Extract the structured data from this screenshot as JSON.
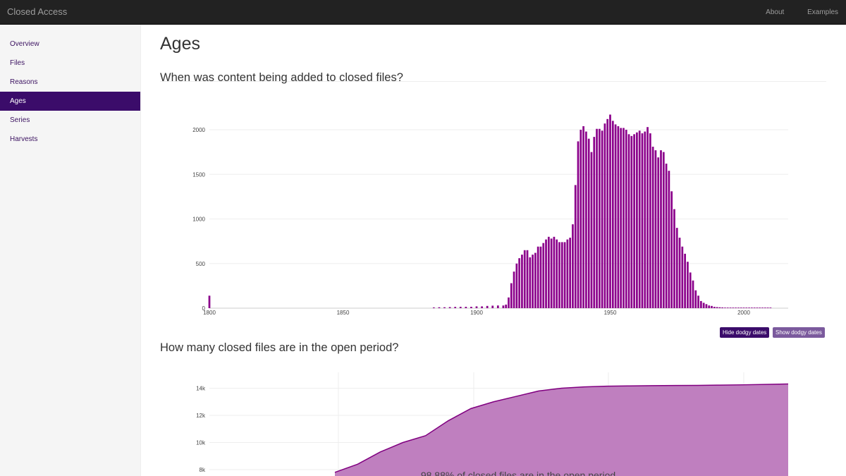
{
  "app": {
    "brand": "Closed Access",
    "nav": [
      "About",
      "Examples"
    ]
  },
  "sidebar": {
    "items": [
      {
        "label": "Overview",
        "active": false
      },
      {
        "label": "Files",
        "active": false
      },
      {
        "label": "Reasons",
        "active": false
      },
      {
        "label": "Ages",
        "active": true
      },
      {
        "label": "Series",
        "active": false
      },
      {
        "label": "Harvests",
        "active": false
      }
    ]
  },
  "page": {
    "title": "Ages",
    "section1_heading": "When was content being added to closed files?",
    "section2_heading": "How many closed files are in the open period?",
    "buttons": {
      "hide": "Hide dodgy dates",
      "show": "Show dodgy dates"
    }
  },
  "colors": {
    "bar": "#8b008b",
    "area_fill": "#bf7fbf",
    "area_line": "#800080",
    "active_nav": "#3b0c6a"
  },
  "chart_data": [
    {
      "type": "bar",
      "title": "",
      "xlabel": "",
      "ylabel": "",
      "x_ticks": [
        1800,
        1850,
        1900,
        1950,
        2000
      ],
      "y_ticks": [
        0,
        500,
        1000,
        1500,
        2000
      ],
      "xlim": [
        1799,
        2016
      ],
      "ylim": [
        0,
        2200
      ],
      "grid": true,
      "x": [
        1800,
        1884,
        1886,
        1888,
        1890,
        1892,
        1894,
        1896,
        1898,
        1900,
        1902,
        1904,
        1906,
        1908,
        1910,
        1911,
        1912,
        1913,
        1914,
        1915,
        1916,
        1917,
        1918,
        1919,
        1920,
        1921,
        1922,
        1923,
        1924,
        1925,
        1926,
        1927,
        1928,
        1929,
        1930,
        1931,
        1932,
        1933,
        1934,
        1935,
        1936,
        1937,
        1938,
        1939,
        1940,
        1941,
        1942,
        1943,
        1944,
        1945,
        1946,
        1947,
        1948,
        1949,
        1950,
        1951,
        1952,
        1953,
        1954,
        1955,
        1956,
        1957,
        1958,
        1959,
        1960,
        1961,
        1962,
        1963,
        1964,
        1965,
        1966,
        1967,
        1968,
        1969,
        1970,
        1971,
        1972,
        1973,
        1974,
        1975,
        1976,
        1977,
        1978,
        1979,
        1980,
        1981,
        1982,
        1983,
        1984,
        1985,
        1986,
        1987,
        1988,
        1989,
        1990,
        1991,
        1992,
        1993,
        1994,
        1995,
        1996,
        1997,
        1998,
        1999,
        2000,
        2001,
        2002,
        2003,
        2004,
        2005,
        2006,
        2007,
        2008,
        2009,
        2010
      ],
      "values": [
        140,
        8,
        10,
        10,
        12,
        14,
        15,
        15,
        15,
        20,
        20,
        25,
        28,
        30,
        30,
        40,
        120,
        280,
        410,
        500,
        560,
        600,
        650,
        650,
        570,
        600,
        620,
        690,
        690,
        730,
        770,
        800,
        780,
        800,
        770,
        740,
        740,
        740,
        770,
        790,
        940,
        1380,
        1870,
        2000,
        2040,
        1980,
        1900,
        1750,
        1920,
        2010,
        2010,
        1990,
        2070,
        2120,
        2170,
        2100,
        2060,
        2040,
        2020,
        2020,
        2000,
        1950,
        1930,
        1950,
        1970,
        1990,
        1960,
        1980,
        2030,
        1960,
        1810,
        1770,
        1690,
        1770,
        1750,
        1620,
        1540,
        1310,
        1110,
        900,
        790,
        690,
        610,
        520,
        400,
        310,
        200,
        140,
        80,
        60,
        45,
        30,
        25,
        15,
        12,
        10,
        8,
        6,
        5,
        4,
        3,
        2,
        1,
        1,
        1,
        1,
        1,
        1,
        1,
        1,
        1,
        1,
        1,
        1,
        1
      ]
    },
    {
      "type": "area",
      "title": "",
      "xlabel": "",
      "ylabel": "",
      "y_ticks": [
        "8k",
        "10k",
        "12k",
        "14k"
      ],
      "ylim": [
        7000,
        15000
      ],
      "x": [
        0,
        5,
        10,
        15,
        20,
        25,
        30,
        35,
        40,
        45,
        50,
        55,
        60,
        65,
        70,
        75,
        80,
        85,
        90,
        95,
        100
      ],
      "values": [
        7800,
        8400,
        9300,
        10000,
        10500,
        11600,
        12500,
        13000,
        13400,
        13800,
        14000,
        14100,
        14150,
        14170,
        14190,
        14200,
        14210,
        14230,
        14250,
        14280,
        14310
      ],
      "annotation": "98.88% of closed files are in the open period"
    }
  ]
}
